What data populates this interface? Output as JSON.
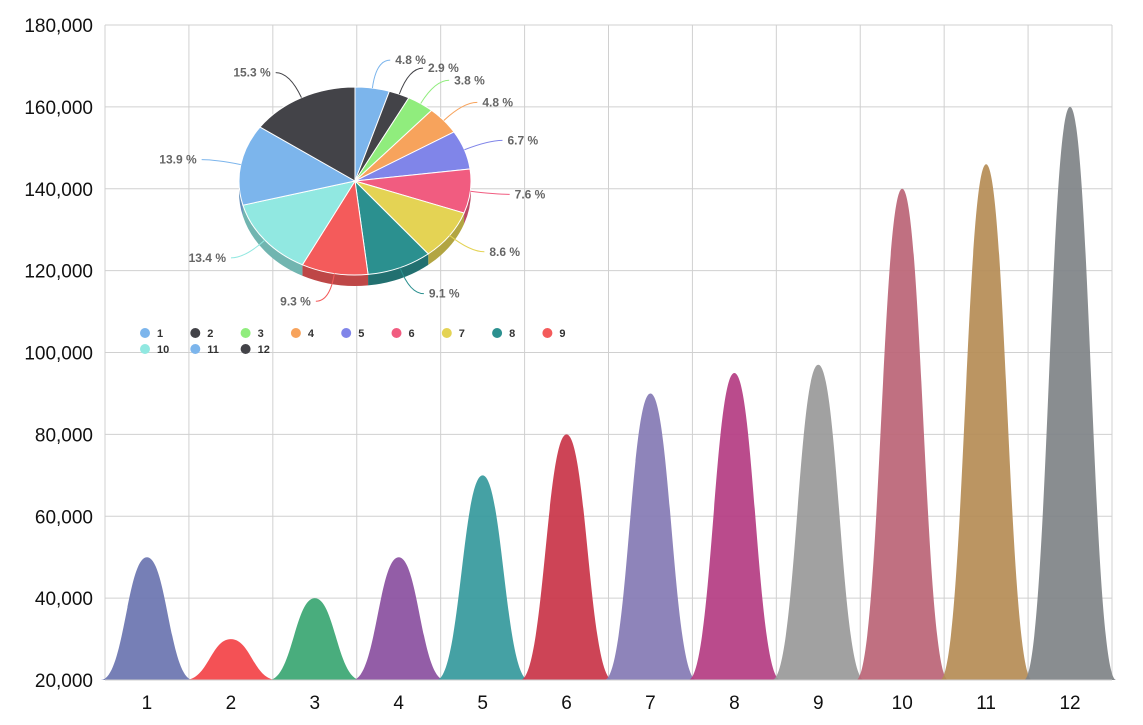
{
  "chart_data": [
    {
      "type": "area",
      "subtype": "pyramid-peaks",
      "categories": [
        "1",
        "2",
        "3",
        "4",
        "5",
        "6",
        "7",
        "8",
        "9",
        "10",
        "11",
        "12"
      ],
      "values": [
        50000,
        30000,
        40000,
        50000,
        70000,
        80000,
        90000,
        95000,
        97000,
        140000,
        146000,
        160000
      ],
      "ylim": [
        20000,
        180000
      ],
      "yticks": [
        "20,000",
        "40,000",
        "60,000",
        "80,000",
        "100,000",
        "120,000",
        "140,000",
        "160,000",
        "180,000"
      ],
      "ytick_values": [
        20000,
        40000,
        60000,
        80000,
        100000,
        120000,
        140000,
        160000,
        180000
      ],
      "grid": true,
      "colors": [
        "#6a74b0",
        "#f34247",
        "#3aa672",
        "#8a4f9f",
        "#35999c",
        "#c93448",
        "#8479b4",
        "#b43c82",
        "#999999",
        "#bb6476",
        "#b58c55",
        "#7f8387"
      ]
    },
    {
      "type": "pie",
      "style": "3d",
      "categories": [
        "1",
        "2",
        "3",
        "4",
        "5",
        "6",
        "7",
        "8",
        "9",
        "10",
        "11",
        "12"
      ],
      "values": [
        4.8,
        2.9,
        3.8,
        4.8,
        6.7,
        7.6,
        8.6,
        9.1,
        9.3,
        13.4,
        13.9,
        15.3
      ],
      "labels": [
        "4.8 %",
        "2.9 %",
        "3.8 %",
        "4.8 %",
        "6.7 %",
        "7.6 %",
        "8.6 %",
        "9.1 %",
        "9.3 %",
        "13.4 %",
        "13.9 %",
        "15.3 %"
      ],
      "colors": [
        "#7cb5ec",
        "#434348",
        "#90ed7d",
        "#f7a35c",
        "#8085e9",
        "#f15c80",
        "#e4d354",
        "#2b908f",
        "#f45b5b",
        "#91e8e1",
        "#7cb5ec",
        "#434348"
      ],
      "legend_position": "below-pie"
    }
  ]
}
